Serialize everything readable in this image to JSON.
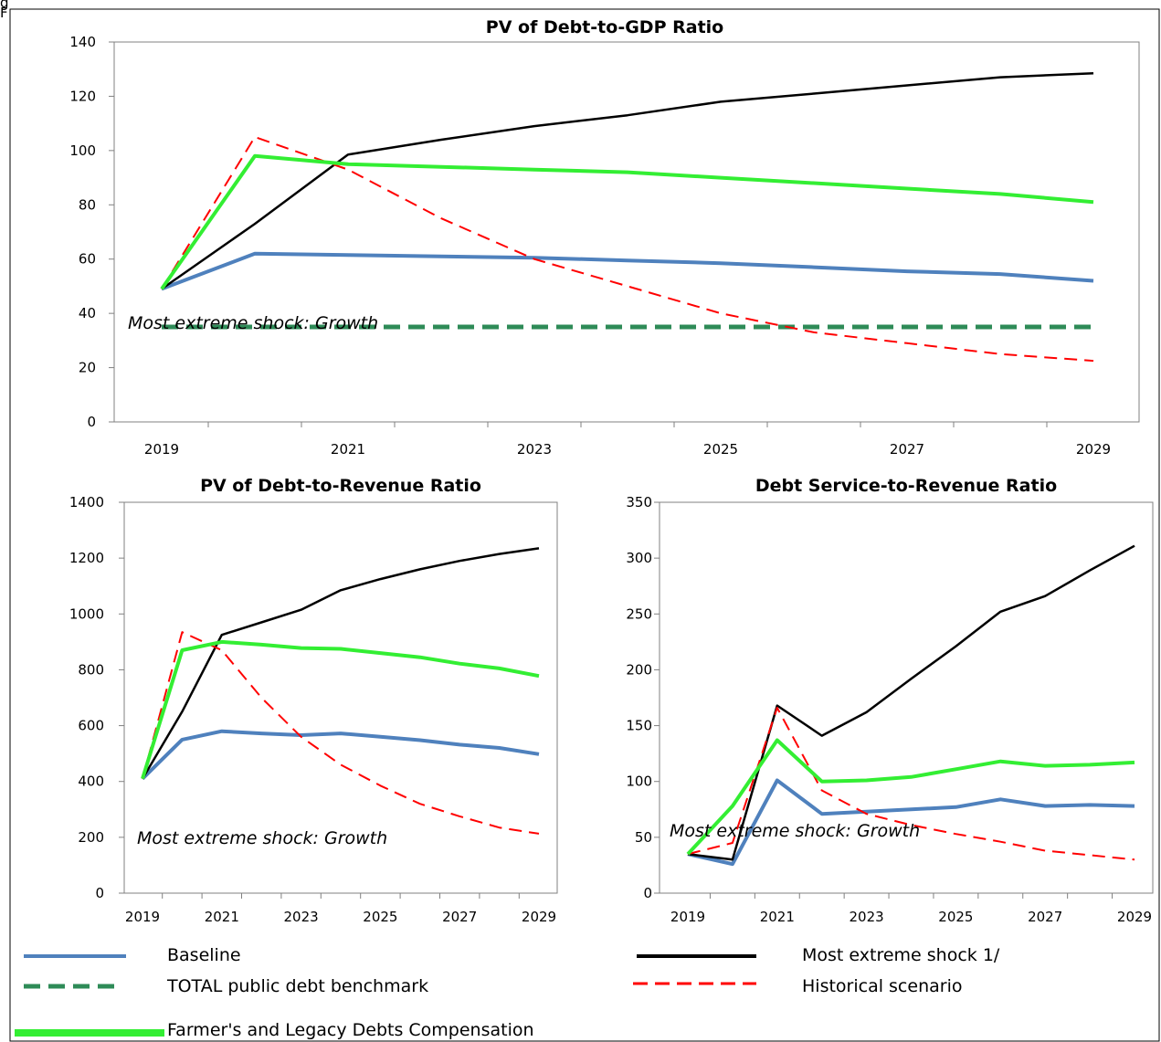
{
  "figure": {
    "top_label": "g",
    "left_mark": "F"
  },
  "colors": {
    "baseline": "#4f81bd",
    "benchmark": "#2e8b57",
    "extreme": "#000000",
    "historical": "#ff0000",
    "farmers": "#33ee33"
  },
  "chart_data": [
    {
      "type": "line",
      "title": "PV of Debt-to-GDP Ratio",
      "annotation": "Most extreme shock: Growth",
      "x": [
        2019,
        2020,
        2021,
        2022,
        2023,
        2024,
        2025,
        2026,
        2027,
        2028,
        2029
      ],
      "xticks": [
        "2019",
        "2021",
        "2023",
        "2025",
        "2027",
        "2029"
      ],
      "ylim": [
        0,
        140
      ],
      "yticks": [
        0,
        20,
        40,
        60,
        80,
        100,
        120,
        140
      ],
      "series": [
        {
          "key": "baseline",
          "values": [
            49,
            62,
            61.5,
            61,
            60.5,
            59.5,
            58.5,
            57,
            55.5,
            54.5,
            52
          ]
        },
        {
          "key": "benchmark",
          "values": [
            35,
            35,
            35,
            35,
            35,
            35,
            35,
            35,
            35,
            35,
            35
          ]
        },
        {
          "key": "extreme",
          "values": [
            49,
            73,
            98.5,
            104,
            109,
            113,
            118,
            121,
            124,
            127,
            128.5
          ]
        },
        {
          "key": "historical",
          "values": [
            49,
            105,
            93,
            75,
            60,
            50,
            40,
            33,
            29,
            25,
            22.5
          ]
        },
        {
          "key": "farmers",
          "values": [
            49,
            98,
            95,
            94,
            93,
            92,
            90,
            88,
            86,
            84,
            81
          ]
        }
      ]
    },
    {
      "type": "line",
      "title": "PV of Debt-to-Revenue  Ratio",
      "annotation": "Most extreme  shock:  Growth",
      "x": [
        2019,
        2020,
        2021,
        2022,
        2023,
        2024,
        2025,
        2026,
        2027,
        2028,
        2029
      ],
      "xticks": [
        "2019",
        "2021",
        "2023",
        "2025",
        "2027",
        "2029"
      ],
      "ylim": [
        0,
        1400
      ],
      "yticks": [
        0,
        200,
        400,
        600,
        800,
        1000,
        1200,
        1400
      ],
      "series": [
        {
          "key": "baseline",
          "values": [
            410,
            550,
            580,
            572,
            566,
            572,
            560,
            548,
            532,
            520,
            498
          ]
        },
        {
          "key": "extreme",
          "values": [
            410,
            650,
            925,
            970,
            1015,
            1085,
            1125,
            1160,
            1190,
            1215,
            1235
          ]
        },
        {
          "key": "historical",
          "values": [
            410,
            935,
            870,
            700,
            560,
            460,
            385,
            320,
            275,
            235,
            213
          ]
        },
        {
          "key": "farmers",
          "values": [
            410,
            870,
            900,
            890,
            878,
            875,
            860,
            845,
            822,
            805,
            778
          ]
        }
      ]
    },
    {
      "type": "line",
      "title": "Debt Service-to-Revenue  Ratio",
      "annotation": "Most extreme  shock:  Growth",
      "x": [
        2019,
        2020,
        2021,
        2022,
        2023,
        2024,
        2025,
        2026,
        2027,
        2028,
        2029
      ],
      "xticks": [
        "2019",
        "2021",
        "2023",
        "2025",
        "2027",
        "2029"
      ],
      "ylim": [
        0,
        350
      ],
      "yticks": [
        0,
        50,
        100,
        150,
        200,
        250,
        300,
        350
      ],
      "series": [
        {
          "key": "baseline",
          "values": [
            35,
            26,
            101,
            71,
            73,
            75,
            77,
            84,
            78,
            79,
            78
          ]
        },
        {
          "key": "extreme",
          "values": [
            35,
            30,
            168,
            141,
            162,
            192,
            221,
            252,
            266,
            289,
            311
          ]
        },
        {
          "key": "historical",
          "values": [
            35,
            45,
            166,
            92,
            71,
            61,
            53,
            46,
            38,
            34,
            30
          ]
        },
        {
          "key": "farmers",
          "values": [
            35,
            78,
            137,
            100,
            101,
            104,
            111,
            118,
            114,
            115,
            117
          ]
        }
      ]
    }
  ],
  "legend": [
    {
      "key": "baseline",
      "label": "Baseline"
    },
    {
      "key": "benchmark",
      "label": "TOTAL public debt benchmark"
    },
    {
      "key": "farmers",
      "label": "Farmer's  and Legacy Debts Compensation"
    },
    {
      "key": "extreme",
      "label": "Most extreme shock 1/"
    },
    {
      "key": "historical",
      "label": "Historical scenario"
    }
  ]
}
